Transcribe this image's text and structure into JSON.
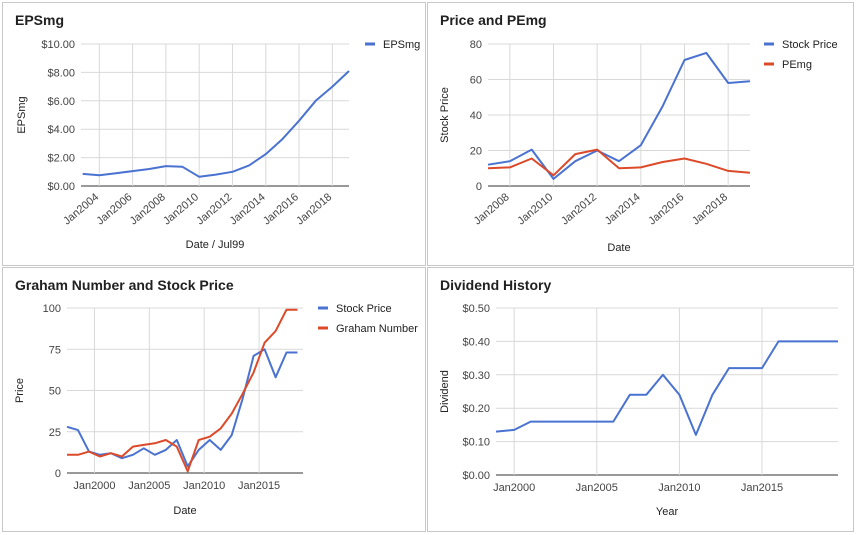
{
  "colors": {
    "blue": "#4a72d1",
    "red": "#dc4a2a",
    "grid": "#d9d9d9"
  },
  "chart_data": [
    {
      "type": "line",
      "title": "EPSmg",
      "xlabel": "Date / Jul99",
      "ylabel": "EPSmg",
      "x_ticks": [
        "Jan2004",
        "Jan2006",
        "Jan2008",
        "Jan2010",
        "Jan2012",
        "Jan2014",
        "Jan2016",
        "Jan2018"
      ],
      "y_ticks": [
        "$0.00",
        "$2.00",
        "$4.00",
        "$6.00",
        "$8.00",
        "$10.00"
      ],
      "ylim": [
        0,
        10
      ],
      "xlim": [
        2002.9,
        2019.0
      ],
      "legend_position": "top-right",
      "grid": true,
      "series": [
        {
          "name": "EPSmg",
          "color": "#4a72d1",
          "x": [
            2003,
            2004,
            2005,
            2006,
            2007,
            2008,
            2009,
            2010,
            2011,
            2012,
            2013,
            2014,
            2015,
            2016,
            2017,
            2018,
            2019
          ],
          "y": [
            0.85,
            0.75,
            0.9,
            1.05,
            1.2,
            1.4,
            1.35,
            0.65,
            0.8,
            1.0,
            1.45,
            2.25,
            3.3,
            4.6,
            6.0,
            7.0,
            8.1
          ]
        }
      ]
    },
    {
      "type": "line",
      "title": "Price and PEmg",
      "xlabel": "Date",
      "ylabel": "Stock Price",
      "x_ticks": [
        "Jan2008",
        "Jan2010",
        "Jan2012",
        "Jan2014",
        "Jan2016",
        "Jan2018"
      ],
      "y_ticks": [
        "0",
        "20",
        "40",
        "60",
        "80"
      ],
      "ylim": [
        0,
        80
      ],
      "xlim": [
        2007,
        2019
      ],
      "legend_position": "top-right",
      "grid": true,
      "series": [
        {
          "name": "Stock Price",
          "color": "#4a72d1",
          "x": [
            2007,
            2008,
            2009,
            2010,
            2011,
            2012,
            2013,
            2014,
            2015,
            2016,
            2017,
            2018,
            2019
          ],
          "y": [
            12,
            14,
            20.5,
            4,
            14,
            20,
            14,
            23,
            45,
            71,
            75,
            58,
            59
          ]
        },
        {
          "name": "PEmg",
          "color": "#dc4a2a",
          "x": [
            2007,
            2008,
            2009,
            2010,
            2011,
            2012,
            2013,
            2014,
            2015,
            2016,
            2017,
            2018,
            2019
          ],
          "y": [
            10,
            10.5,
            15.5,
            6,
            18,
            20.5,
            10,
            10.5,
            13.5,
            15.5,
            12.5,
            8.5,
            7.5
          ]
        }
      ]
    },
    {
      "type": "line",
      "title": "Graham Number and Stock Price",
      "xlabel": "Date",
      "ylabel": "Price",
      "x_ticks": [
        "Jan2000",
        "Jan2005",
        "Jan2010",
        "Jan2015"
      ],
      "x_tick_values": [
        2000,
        2005,
        2010,
        2015
      ],
      "y_ticks": [
        "0",
        "25",
        "50",
        "75",
        "100"
      ],
      "ylim": [
        0,
        100
      ],
      "xlim": [
        1997.5,
        2019
      ],
      "legend_position": "top-right",
      "grid": true,
      "series": [
        {
          "name": "Stock Price",
          "color": "#4a72d1",
          "x": [
            1997.5,
            1998.5,
            1999.5,
            2000.5,
            2001.5,
            2002.5,
            2003.5,
            2004.5,
            2005.5,
            2006.5,
            2007.5,
            2008.5,
            2009.5,
            2010.5,
            2011.5,
            2012.5,
            2013.5,
            2014.5,
            2015.5,
            2016.5,
            2017.5,
            2018.5
          ],
          "y": [
            28,
            26,
            13,
            11,
            12,
            9,
            11,
            15,
            11,
            14,
            20,
            4,
            14,
            20,
            14,
            23,
            45,
            71,
            75,
            58,
            73,
            73
          ]
        },
        {
          "name": "Graham Number",
          "color": "#dc4a2a",
          "x": [
            1997.5,
            1998.5,
            1999.5,
            2000.5,
            2001.5,
            2002.5,
            2003.5,
            2004.5,
            2005.5,
            2006.5,
            2007.5,
            2008.5,
            2009.5,
            2010.5,
            2011.5,
            2012.5,
            2013.5,
            2014.5,
            2015.5,
            2016.5,
            2017.5,
            2018.5
          ],
          "y": [
            11,
            11,
            13,
            10,
            12,
            10,
            16,
            17,
            18,
            20,
            16,
            1,
            20,
            22,
            27,
            36,
            48,
            61,
            79,
            86,
            99,
            99
          ]
        }
      ]
    },
    {
      "type": "line",
      "title": "Dividend History",
      "xlabel": "Year",
      "ylabel": "Dividend",
      "x_ticks": [
        "Jan2000",
        "Jan2005",
        "Jan2010",
        "Jan2015"
      ],
      "x_tick_values": [
        2000,
        2005,
        2010,
        2015
      ],
      "y_ticks": [
        "$0.00",
        "$0.10",
        "$0.20",
        "$0.30",
        "$0.40",
        "$0.50"
      ],
      "ylim": [
        0,
        0.5
      ],
      "xlim": [
        1998.9,
        2019.6
      ],
      "legend_position": "none",
      "grid": true,
      "series": [
        {
          "name": "",
          "color": "#4a72d1",
          "x": [
            1998.9,
            2000,
            2001,
            2002,
            2003,
            2004,
            2005,
            2006,
            2007,
            2008,
            2009,
            2010,
            2011,
            2012,
            2013,
            2014,
            2015,
            2016,
            2017,
            2018,
            2019.6
          ],
          "y": [
            0.13,
            0.135,
            0.16,
            0.16,
            0.16,
            0.16,
            0.16,
            0.16,
            0.24,
            0.24,
            0.3,
            0.24,
            0.12,
            0.24,
            0.32,
            0.32,
            0.32,
            0.4,
            0.4,
            0.4,
            0.4
          ]
        }
      ]
    }
  ]
}
